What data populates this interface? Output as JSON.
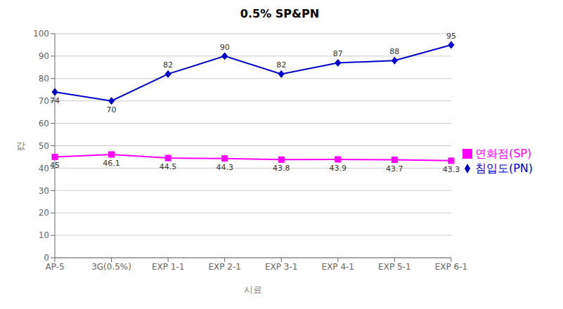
{
  "chart_data": {
    "type": "line",
    "title": "0.5% SP&PN",
    "xlabel": "시료",
    "ylabel": "값",
    "categories": [
      "AP-5",
      "3G(0.5%)",
      "EXP 1-1",
      "EXP 2-1",
      "EXP 3-1",
      "EXP 4-1",
      "EXP 5-1",
      "EXP 6-1"
    ],
    "series": [
      {
        "name": "침입도(PN)",
        "color": "#0000CD",
        "marker": "diamond",
        "values": [
          74,
          70,
          82,
          90,
          82,
          87,
          88,
          95
        ]
      },
      {
        "name": "연화점(SP)",
        "color": "#FF00FF",
        "marker": "square",
        "values": [
          45,
          46.1,
          44.5,
          44.3,
          43.8,
          43.9,
          43.7,
          43.3
        ]
      }
    ],
    "ylim": [
      0,
      100
    ],
    "yticks": [
      0,
      10,
      20,
      30,
      40,
      50,
      60,
      70,
      80,
      90,
      100
    ],
    "grid": true,
    "legend": "right",
    "data_labels": true
  }
}
